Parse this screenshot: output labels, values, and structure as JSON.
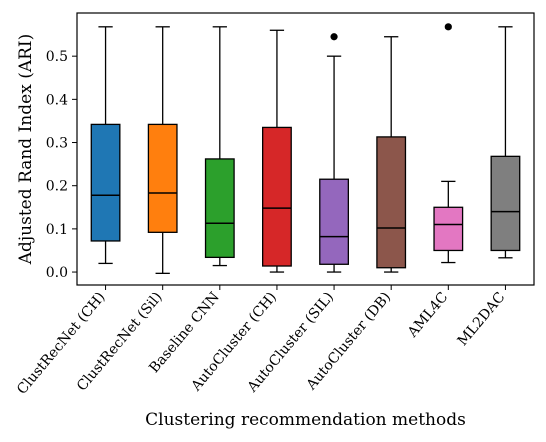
{
  "chart_data": {
    "type": "box",
    "xlabel": "Clustering recommendation methods",
    "ylabel": "Adjusted Rand Index (ARI)",
    "ylim": [
      -0.03,
      0.6
    ],
    "yticks": [
      0.0,
      0.1,
      0.2,
      0.3,
      0.4,
      0.5
    ],
    "ytick_labels": [
      "0.0",
      "0.1",
      "0.2",
      "0.3",
      "0.4",
      "0.5"
    ],
    "grid": false,
    "categories": [
      "ClustRecNet (CH)",
      "ClustRecNet (Sil)",
      "Baseline CNN",
      "AutoCluster (CH)",
      "AutoCluster (SIL)",
      "AutoCluster (DB)",
      "AML4C",
      "ML2DAC"
    ],
    "boxes": [
      {
        "whisker_low": 0.02,
        "q1": 0.072,
        "median": 0.178,
        "q3": 0.342,
        "whisker_high": 0.568,
        "outliers": [],
        "color": "#1f77b4"
      },
      {
        "whisker_low": -0.003,
        "q1": 0.092,
        "median": 0.183,
        "q3": 0.342,
        "whisker_high": 0.568,
        "outliers": [],
        "color": "#ff7f0e"
      },
      {
        "whisker_low": 0.015,
        "q1": 0.034,
        "median": 0.113,
        "q3": 0.262,
        "whisker_high": 0.568,
        "outliers": [],
        "color": "#2ca02c"
      },
      {
        "whisker_low": 0.0,
        "q1": 0.014,
        "median": 0.148,
        "q3": 0.335,
        "whisker_high": 0.56,
        "outliers": [],
        "color": "#d62728"
      },
      {
        "whisker_low": 0.0,
        "q1": 0.018,
        "median": 0.082,
        "q3": 0.215,
        "whisker_high": 0.5,
        "outliers": [
          0.545
        ],
        "color": "#9467bd"
      },
      {
        "whisker_low": 0.0,
        "q1": 0.01,
        "median": 0.102,
        "q3": 0.313,
        "whisker_high": 0.545,
        "outliers": [],
        "color": "#8c564b"
      },
      {
        "whisker_low": 0.022,
        "q1": 0.05,
        "median": 0.11,
        "q3": 0.15,
        "whisker_high": 0.21,
        "outliers": [
          0.568
        ],
        "color": "#e377c2"
      },
      {
        "whisker_low": 0.033,
        "q1": 0.05,
        "median": 0.14,
        "q3": 0.268,
        "whisker_high": 0.568,
        "outliers": [],
        "color": "#7f7f7f"
      }
    ]
  }
}
